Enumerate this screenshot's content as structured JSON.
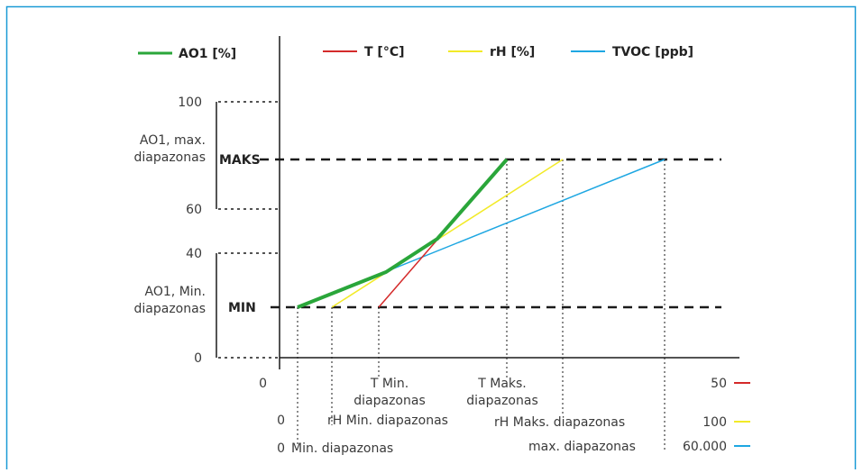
{
  "colors": {
    "frame": "#1a9ad6",
    "ao1": "#2aa63a",
    "t": "#d42a2a",
    "rh": "#f2ea28",
    "tvoc": "#1ea7e2",
    "axis": "#1a1a1a"
  },
  "legend": {
    "ao1": "AO1 [%]",
    "t": "T [°C]",
    "rh": "rH [%]",
    "tvoc": "TVOC [ppb]"
  },
  "y_axis": {
    "tick_100": "100",
    "tick_60": "60",
    "tick_40": "40",
    "tick_0": "0",
    "max_range_label_line1": "AO1, max.",
    "max_range_label_line2": "diapazonas",
    "min_range_label_line1": "AO1, Min.",
    "min_range_label_line2": "diapazonas",
    "maks": "MAKS",
    "min": "MIN"
  },
  "x_axis": {
    "row1_zero": "0",
    "t_min_line1": "T Min.",
    "t_min_line2": "diapazonas",
    "t_max_line1": "T Maks.",
    "t_max_line2": "diapazonas",
    "row1_end": "50",
    "row2_zero": "0",
    "rh_min": "rH Min. diapazonas",
    "rh_max": "rH Maks. diapazonas",
    "row2_end": "100",
    "row3_zero": "0",
    "tvoc_min": "Min. diapazonas",
    "tvoc_max": "max. diapazonas",
    "row3_end": "60.000"
  }
}
